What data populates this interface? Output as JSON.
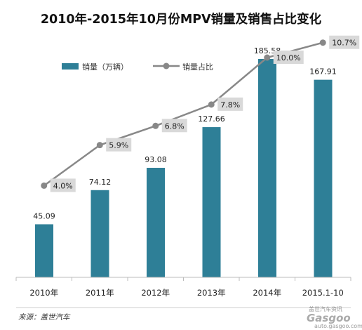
{
  "chart_data": {
    "type": "bar",
    "title": "2010年-2015年10月份MPV销量及销售占比变化",
    "categories": [
      "2010年",
      "2011年",
      "2012年",
      "2013年",
      "2014年",
      "2015.1-10"
    ],
    "series": [
      {
        "name": "销量（万辆）",
        "type": "bar",
        "values": [
          45.09,
          74.12,
          93.08,
          127.66,
          185.58,
          167.91
        ],
        "value_labels": [
          "45.09",
          "74.12",
          "93.08",
          "127.66",
          "185.58",
          "167.91"
        ]
      },
      {
        "name": "销量占比",
        "type": "line",
        "values": [
          4.0,
          5.9,
          6.8,
          7.8,
          10.0,
          10.7
        ],
        "value_labels": [
          "4.0%",
          "5.9%",
          "6.8%",
          "7.8%",
          "10.0%",
          "10.7%"
        ]
      }
    ],
    "grid": false,
    "legend_position": "top-left",
    "colors": {
      "bar": "#2e7f97",
      "line": "#888888",
      "label_box": "#d9d9d9"
    }
  },
  "source": "来源：盖世汽车",
  "watermark": {
    "small": "盖世汽车资讯",
    "logo": "Gasgoo",
    "url": "auto.gasgoo.com"
  }
}
